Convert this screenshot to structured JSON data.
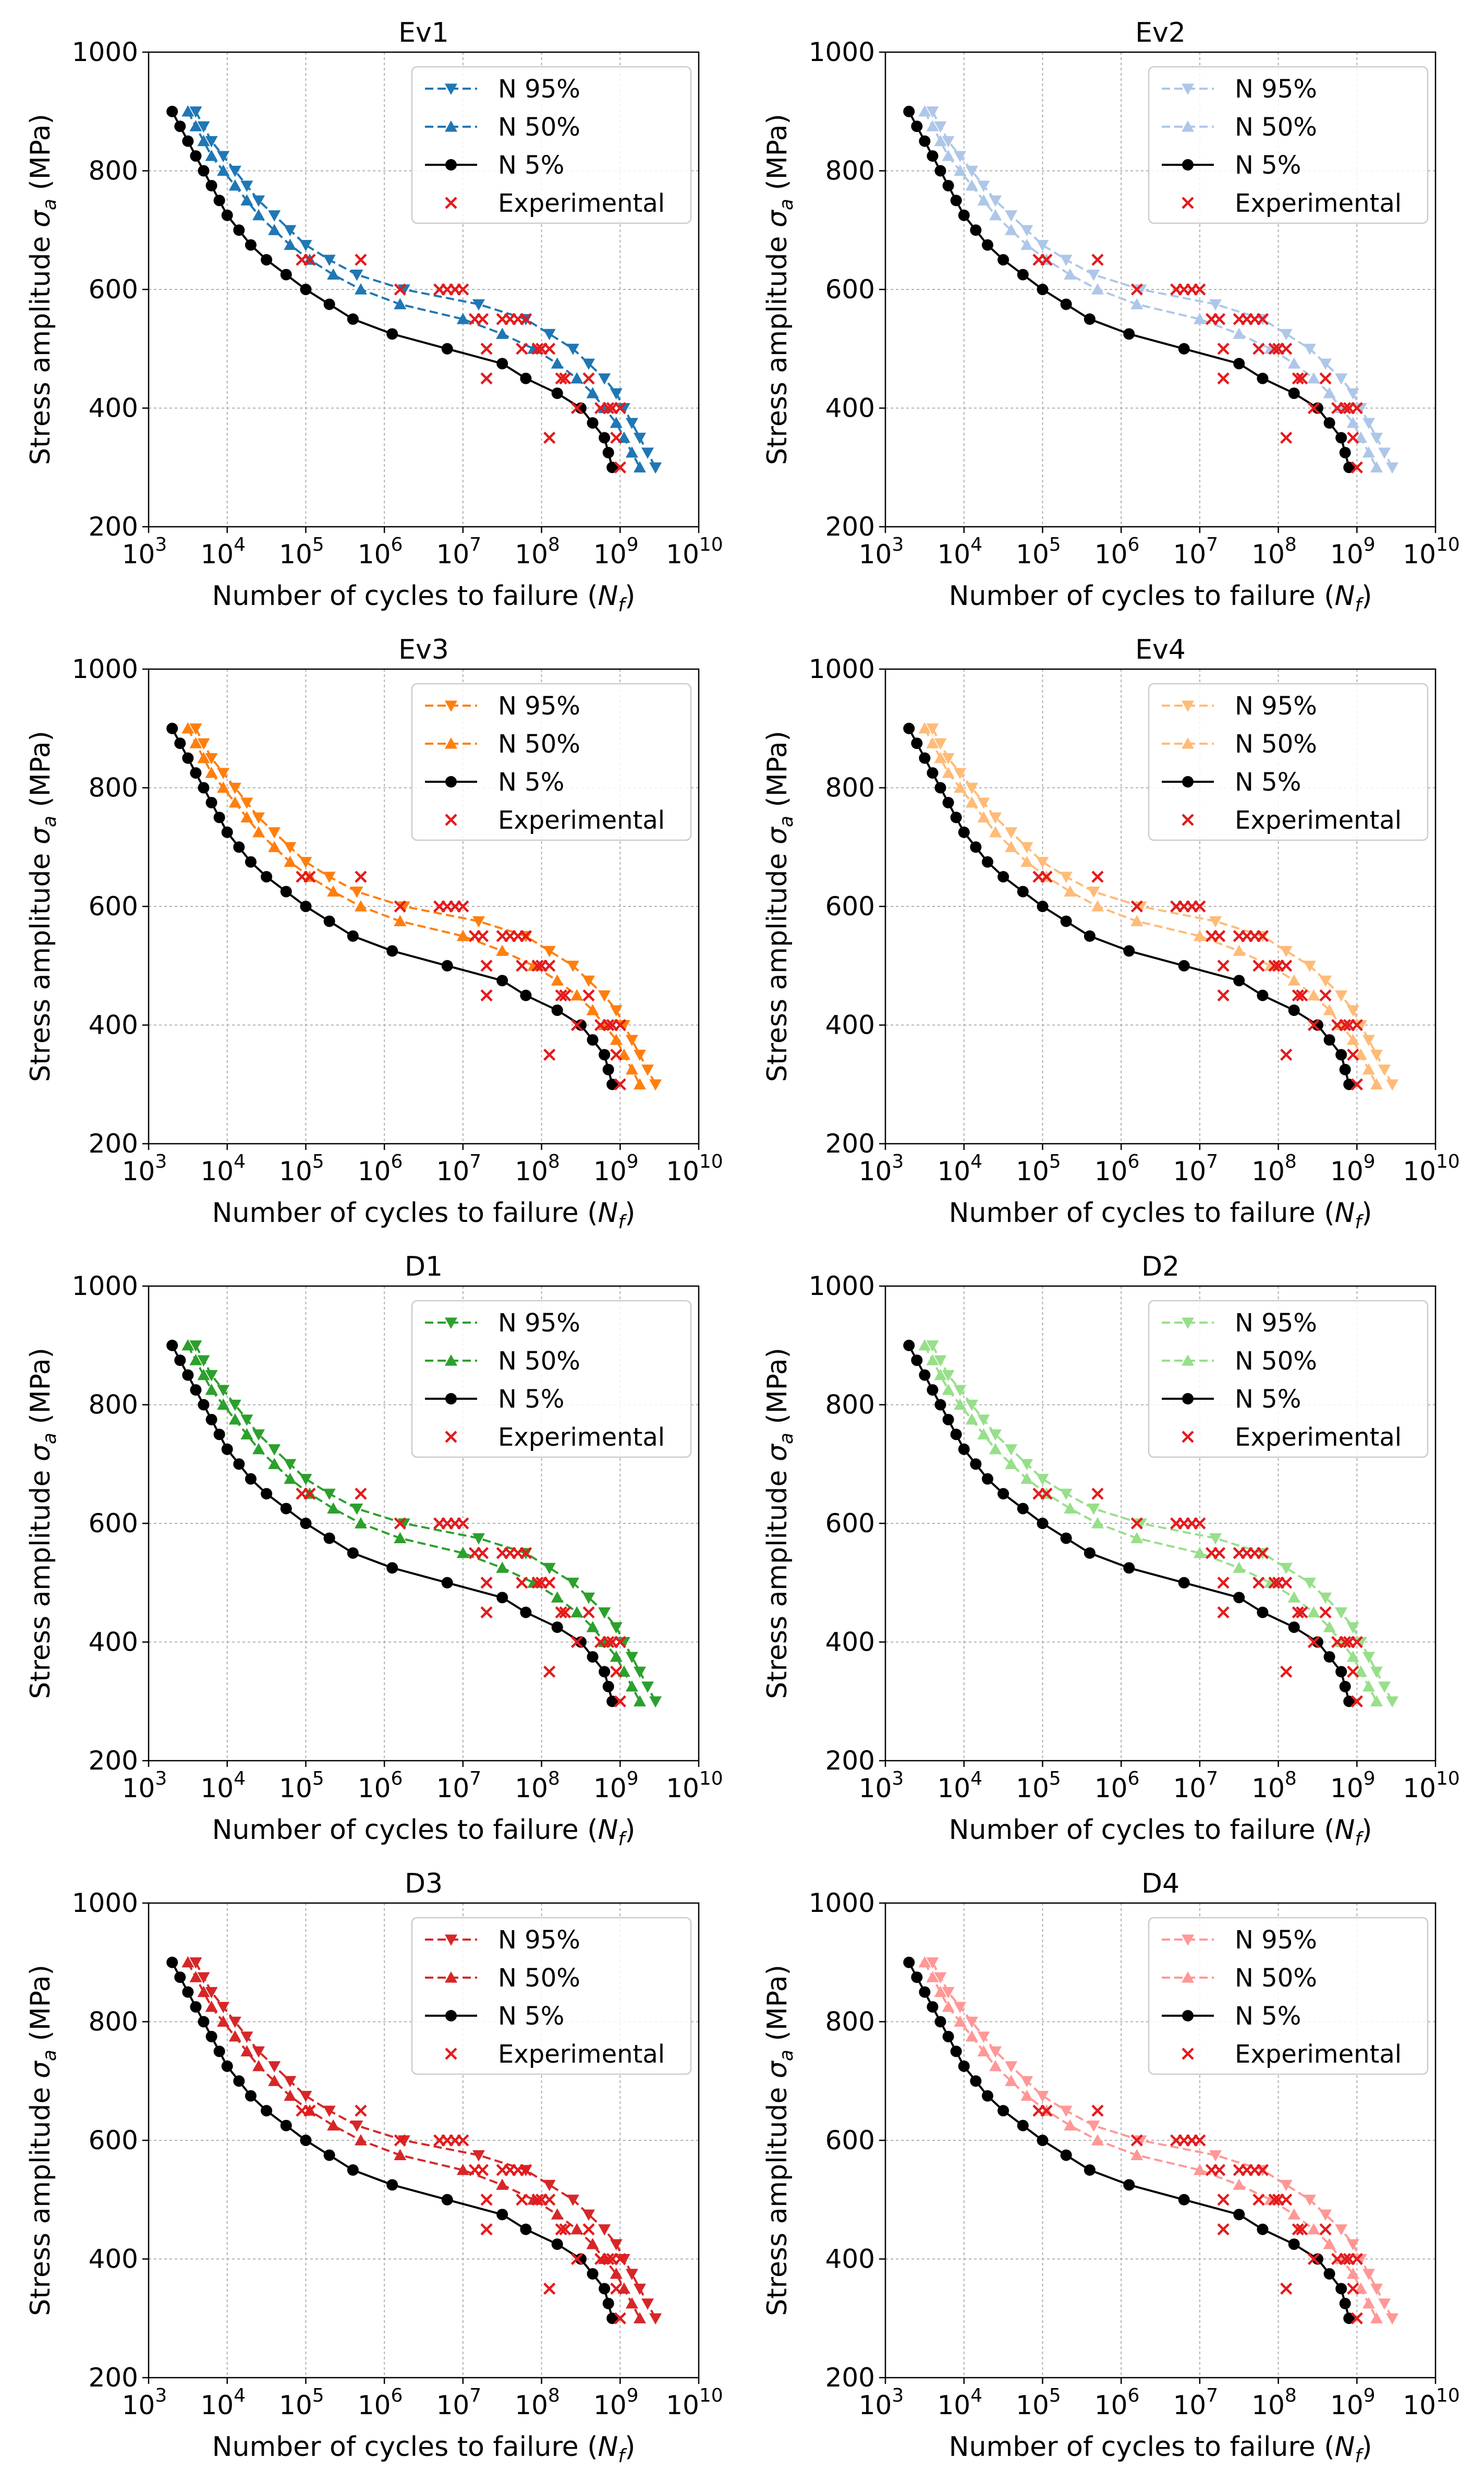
{
  "figure": {
    "xlabel_prefix": "Number of cycles to failure (",
    "xlabel_var": "N",
    "xlabel_sub": "f",
    "xlabel_suffix": ")",
    "ylabel_prefix": "Stress amplitude ",
    "ylabel_var": "σ",
    "ylabel_sub": "a",
    "ylabel_suffix": " (MPa)",
    "x_tick_base": "10",
    "x_tick_exponents": [
      "3",
      "4",
      "5",
      "6",
      "7",
      "8",
      "9",
      "10"
    ],
    "y_ticks": [
      "200",
      "400",
      "600",
      "800",
      "1000"
    ],
    "legend_labels": [
      "N 95%",
      "N 50%",
      "N 5%",
      "Experimental"
    ],
    "n5_color": "#000000",
    "experimental_color": "#e41a1c"
  },
  "chart_data": {
    "type": "line",
    "xscale": "log",
    "xlim": [
      1000,
      10000000000
    ],
    "ylim": [
      200,
      1000
    ],
    "grid": true,
    "legend_position": "top-right",
    "stress_levels": [
      900,
      875,
      850,
      825,
      800,
      775,
      750,
      725,
      700,
      675,
      650,
      625,
      600,
      575,
      550,
      525,
      500,
      475,
      450,
      425,
      400,
      375,
      350,
      325,
      300
    ],
    "n5_log10_cycles": [
      3.3,
      3.4,
      3.5,
      3.6,
      3.7,
      3.8,
      3.9,
      4.0,
      4.15,
      4.3,
      4.5,
      4.75,
      5.0,
      5.3,
      5.6,
      6.1,
      6.8,
      7.5,
      7.8,
      8.2,
      8.5,
      8.65,
      8.8,
      8.85,
      8.9
    ],
    "n50_log10_cycles": [
      3.5,
      3.6,
      3.7,
      3.8,
      3.95,
      4.1,
      4.25,
      4.4,
      4.6,
      4.8,
      5.05,
      5.35,
      5.7,
      6.2,
      7.0,
      7.5,
      7.9,
      8.2,
      8.45,
      8.65,
      8.8,
      8.95,
      9.05,
      9.15,
      9.25
    ],
    "n95_log10_cycles": [
      3.6,
      3.7,
      3.8,
      3.95,
      4.1,
      4.25,
      4.4,
      4.6,
      4.8,
      5.0,
      5.3,
      5.65,
      6.25,
      7.2,
      7.8,
      8.1,
      8.4,
      8.6,
      8.8,
      8.95,
      9.05,
      9.15,
      9.25,
      9.35,
      9.45
    ],
    "experimental_points": [
      {
        "log10_cycles": 4.95,
        "stress": 650
      },
      {
        "log10_cycles": 5.05,
        "stress": 650
      },
      {
        "log10_cycles": 5.7,
        "stress": 650
      },
      {
        "log10_cycles": 6.2,
        "stress": 600
      },
      {
        "log10_cycles": 6.7,
        "stress": 600
      },
      {
        "log10_cycles": 6.8,
        "stress": 600
      },
      {
        "log10_cycles": 6.9,
        "stress": 600
      },
      {
        "log10_cycles": 7.0,
        "stress": 600
      },
      {
        "log10_cycles": 7.15,
        "stress": 550
      },
      {
        "log10_cycles": 7.25,
        "stress": 550
      },
      {
        "log10_cycles": 7.3,
        "stress": 500
      },
      {
        "log10_cycles": 7.3,
        "stress": 450
      },
      {
        "log10_cycles": 7.5,
        "stress": 550
      },
      {
        "log10_cycles": 7.6,
        "stress": 550
      },
      {
        "log10_cycles": 7.7,
        "stress": 550
      },
      {
        "log10_cycles": 7.75,
        "stress": 500
      },
      {
        "log10_cycles": 7.8,
        "stress": 550
      },
      {
        "log10_cycles": 7.95,
        "stress": 500
      },
      {
        "log10_cycles": 8.0,
        "stress": 500
      },
      {
        "log10_cycles": 8.1,
        "stress": 500
      },
      {
        "log10_cycles": 8.1,
        "stress": 350
      },
      {
        "log10_cycles": 8.25,
        "stress": 450
      },
      {
        "log10_cycles": 8.3,
        "stress": 450
      },
      {
        "log10_cycles": 8.45,
        "stress": 400
      },
      {
        "log10_cycles": 8.6,
        "stress": 450
      },
      {
        "log10_cycles": 8.75,
        "stress": 400
      },
      {
        "log10_cycles": 8.85,
        "stress": 400
      },
      {
        "log10_cycles": 8.9,
        "stress": 400
      },
      {
        "log10_cycles": 8.95,
        "stress": 350
      },
      {
        "log10_cycles": 9.0,
        "stress": 400
      },
      {
        "log10_cycles": 9.0,
        "stress": 300
      }
    ],
    "panels": [
      {
        "title": "Ev1",
        "color": "#1f77b4"
      },
      {
        "title": "Ev2",
        "color": "#aec7e8"
      },
      {
        "title": "Ev3",
        "color": "#ff7f0e"
      },
      {
        "title": "Ev4",
        "color": "#ffbb78"
      },
      {
        "title": "D1",
        "color": "#2ca02c"
      },
      {
        "title": "D2",
        "color": "#98df8a"
      },
      {
        "title": "D3",
        "color": "#d62728"
      },
      {
        "title": "D4",
        "color": "#ff9896"
      }
    ]
  }
}
